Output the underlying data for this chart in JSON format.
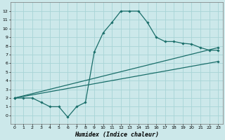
{
  "xlabel": "Humidex (Indice chaleur)",
  "background_color": "#cce8ea",
  "grid_color": "#a8d4d6",
  "line_color": "#1a6e6a",
  "line1_x": [
    0,
    1,
    2,
    3,
    4,
    5,
    6,
    7,
    8,
    9,
    10,
    11,
    12,
    13,
    14,
    15,
    16,
    17,
    18,
    19,
    20,
    21,
    22,
    23
  ],
  "line1_y": [
    2,
    2,
    2,
    1.5,
    1,
    1,
    -0.2,
    1,
    1.5,
    7.3,
    9.5,
    10.7,
    12,
    12,
    12,
    10.7,
    9,
    8.5,
    8.5,
    8.3,
    8.2,
    7.8,
    7.5,
    7.5
  ],
  "line2_x": [
    0,
    23
  ],
  "line2_y": [
    2,
    7.8
  ],
  "line3_x": [
    0,
    23
  ],
  "line3_y": [
    2,
    6.2
  ],
  "xlim": [
    -0.5,
    23.5
  ],
  "ylim": [
    -1,
    13
  ],
  "xticks": [
    0,
    1,
    2,
    3,
    4,
    5,
    6,
    7,
    8,
    9,
    10,
    11,
    12,
    13,
    14,
    15,
    16,
    17,
    18,
    19,
    20,
    21,
    22,
    23
  ],
  "yticks": [
    0,
    1,
    2,
    3,
    4,
    5,
    6,
    7,
    8,
    9,
    10,
    11,
    12
  ],
  "tick_fontsize": 4.5,
  "xlabel_fontsize": 6.0
}
